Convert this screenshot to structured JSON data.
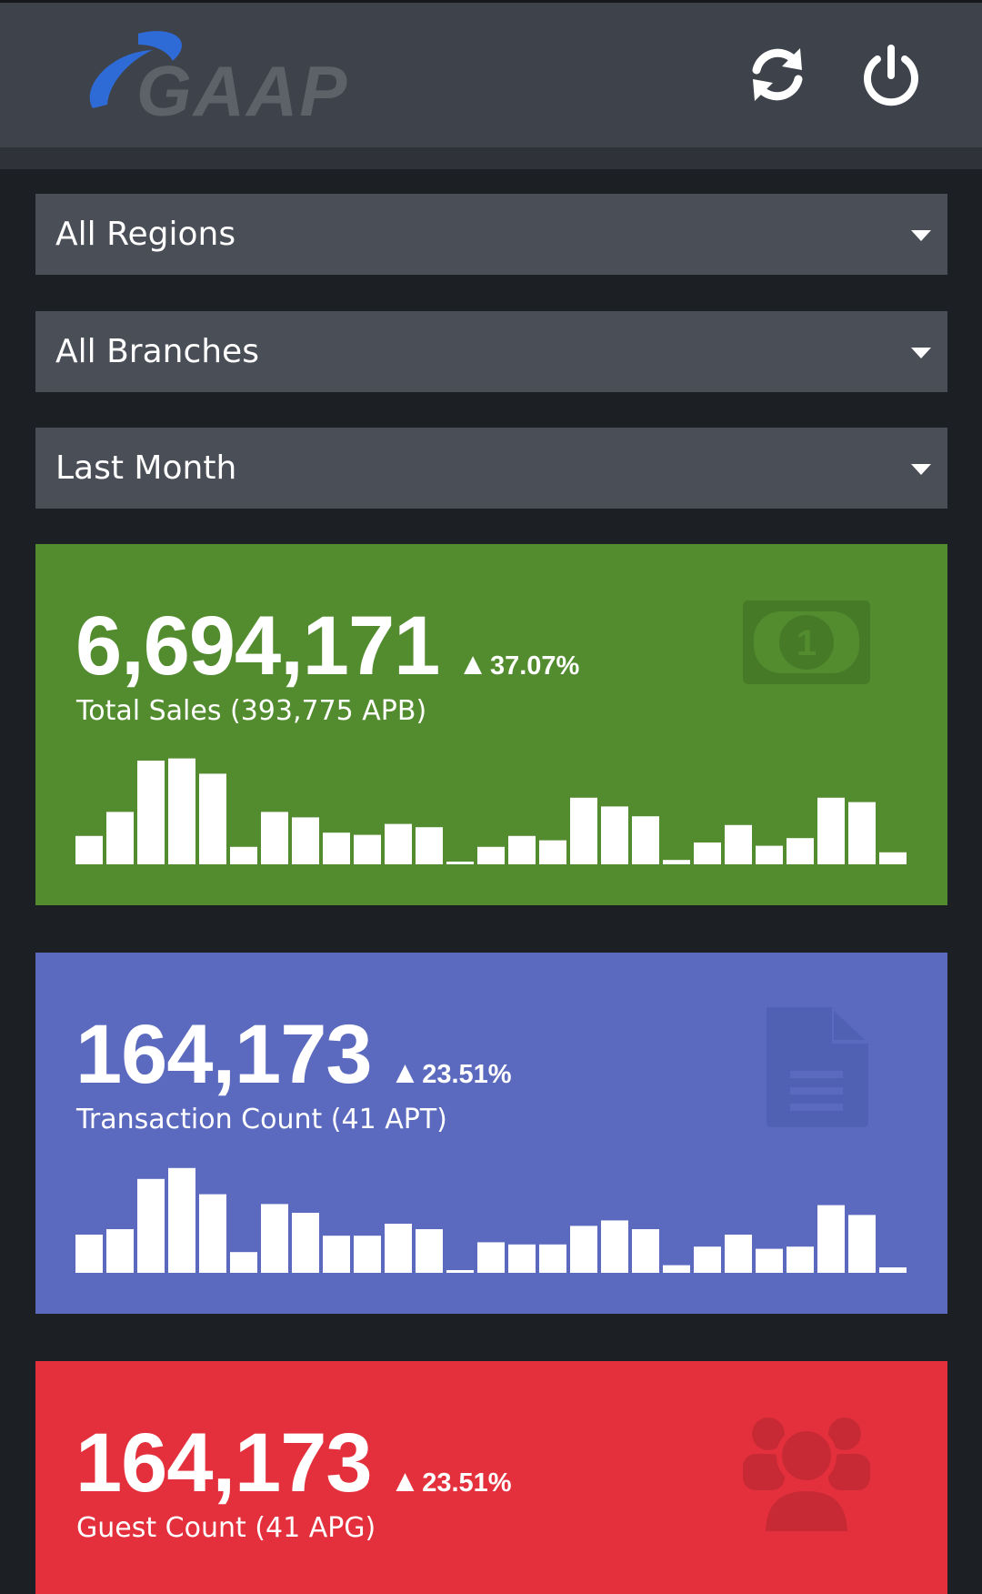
{
  "header": {
    "logo_text": "GAAP",
    "refresh_icon": "refresh-icon",
    "power_icon": "power-icon"
  },
  "filters": {
    "region": "All Regions",
    "branch": "All Branches",
    "period": "Last Month"
  },
  "cards": [
    {
      "value": "6,694,171",
      "change": "37.07%",
      "label": "Total Sales (393,775 APB)",
      "icon": "money-bill-icon",
      "color": "#538c2f",
      "bars": [
        26,
        48,
        95,
        97,
        83,
        16,
        48,
        43,
        29,
        27,
        37,
        34,
        2,
        16,
        26,
        22,
        61,
        53,
        44,
        4,
        20,
        36,
        17,
        24,
        61,
        57,
        11
      ]
    },
    {
      "value": "164,173",
      "change": "23.51%",
      "label": "Transaction Count (41 APT)",
      "icon": "document-icon",
      "color": "#5b6abe",
      "bars": [
        35,
        40,
        86,
        96,
        72,
        19,
        63,
        55,
        34,
        34,
        45,
        40,
        2,
        28,
        26,
        26,
        43,
        48,
        40,
        7,
        24,
        35,
        22,
        24,
        62,
        53,
        5
      ]
    },
    {
      "value": "164,173",
      "change": "23.51%",
      "label": "Guest Count (41 APG)",
      "icon": "users-icon",
      "color": "#e3303c"
    }
  ]
}
